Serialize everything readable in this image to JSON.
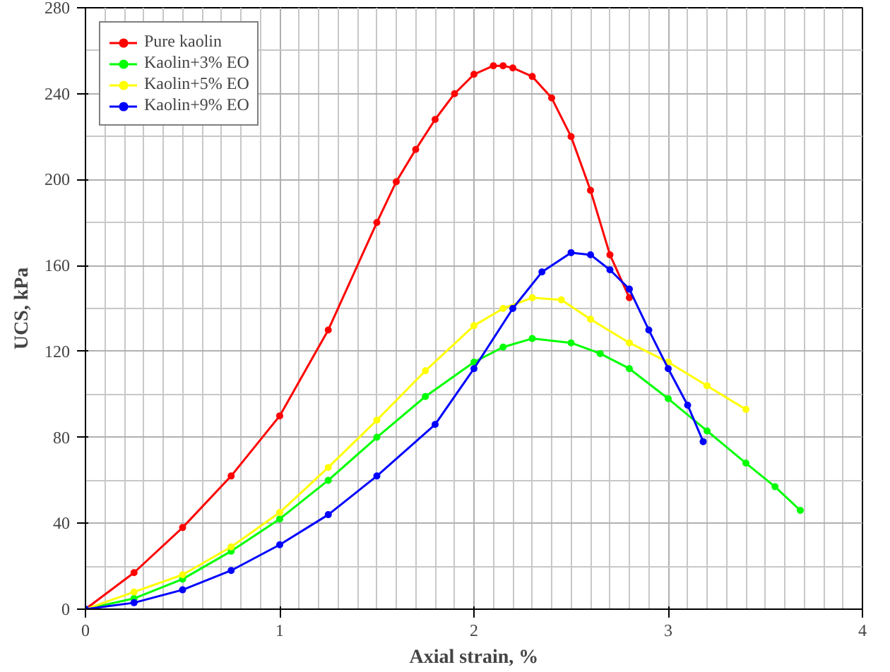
{
  "chart_data": {
    "type": "line",
    "xlabel": "Axial strain, %",
    "ylabel": "UCS, kPa",
    "xlim": [
      0,
      4
    ],
    "ylim": [
      0,
      280
    ],
    "xticks": [
      0,
      1,
      2,
      3,
      4
    ],
    "yticks": [
      0,
      40,
      80,
      120,
      160,
      200,
      240,
      280
    ],
    "grid": true,
    "legend": "top left",
    "marker": "circle",
    "line_style": "solid",
    "series": [
      {
        "name": "Pure kaolin",
        "color": "#ff0000",
        "x": [
          0,
          0.25,
          0.5,
          0.75,
          1.0,
          1.25,
          1.5,
          1.6,
          1.7,
          1.8,
          1.9,
          2.0,
          2.1,
          2.15,
          2.2,
          2.3,
          2.4,
          2.5,
          2.6,
          2.7,
          2.8
        ],
        "values": [
          0,
          17,
          38,
          62,
          90,
          130,
          180,
          199,
          214,
          228,
          240,
          249,
          253,
          253,
          252,
          248,
          238,
          220,
          195,
          165,
          145
        ]
      },
      {
        "name": "Kaolin+3% EO",
        "color": "#00ff00",
        "x": [
          0,
          0.25,
          0.5,
          0.75,
          1.0,
          1.25,
          1.5,
          1.75,
          2.0,
          2.15,
          2.3,
          2.5,
          2.65,
          2.8,
          3.0,
          3.2,
          3.4,
          3.55,
          3.68
        ],
        "values": [
          0,
          5,
          14,
          27,
          42,
          60,
          80,
          99,
          115,
          122,
          126,
          124,
          119,
          112,
          98,
          83,
          68,
          57,
          46
        ]
      },
      {
        "name": "Kaolin+5% EO",
        "color": "#ffff00",
        "x": [
          0,
          0.25,
          0.5,
          0.75,
          1.0,
          1.25,
          1.5,
          1.75,
          2.0,
          2.15,
          2.3,
          2.45,
          2.6,
          2.8,
          3.0,
          3.2,
          3.4
        ],
        "values": [
          0,
          8,
          16,
          29,
          45,
          66,
          88,
          111,
          132,
          140,
          145,
          144,
          135,
          124,
          115,
          104,
          93
        ]
      },
      {
        "name": "Kaolin+9% EO",
        "color": "#0000ff",
        "x": [
          0,
          0.25,
          0.5,
          0.75,
          1.0,
          1.25,
          1.5,
          1.8,
          2.0,
          2.2,
          2.35,
          2.5,
          2.6,
          2.7,
          2.8,
          2.9,
          3.0,
          3.1,
          3.18
        ],
        "values": [
          0,
          3,
          9,
          18,
          30,
          44,
          62,
          86,
          112,
          140,
          157,
          166,
          165,
          158,
          149,
          130,
          112,
          95,
          78
        ]
      }
    ]
  }
}
